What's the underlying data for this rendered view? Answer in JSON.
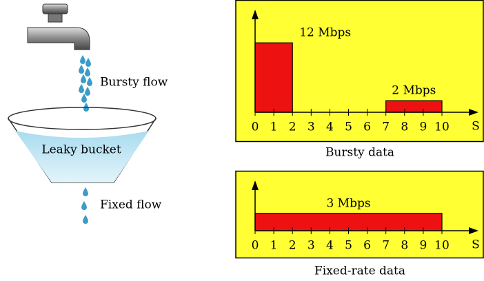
{
  "left": {
    "bursty_flow": "Bursty flow",
    "bucket": "Leaky bucket",
    "fixed_flow": "Fixed flow"
  },
  "charts": [
    {
      "caption": "Bursty data",
      "x_label": "S",
      "xticks": [
        0,
        1,
        2,
        3,
        4,
        5,
        6,
        7,
        8,
        9,
        10
      ],
      "bars": [
        {
          "start": 0,
          "end": 2,
          "rate": 12,
          "label": "12 Mbps"
        },
        {
          "start": 7,
          "end": 10,
          "rate": 2,
          "label": "2 Mbps"
        }
      ]
    },
    {
      "caption": "Fixed-rate data",
      "x_label": "S",
      "xticks": [
        0,
        1,
        2,
        3,
        4,
        5,
        6,
        7,
        8,
        9,
        10
      ],
      "bars": [
        {
          "start": 0,
          "end": 10,
          "rate": 3,
          "label": "3 Mbps"
        }
      ]
    }
  ]
}
